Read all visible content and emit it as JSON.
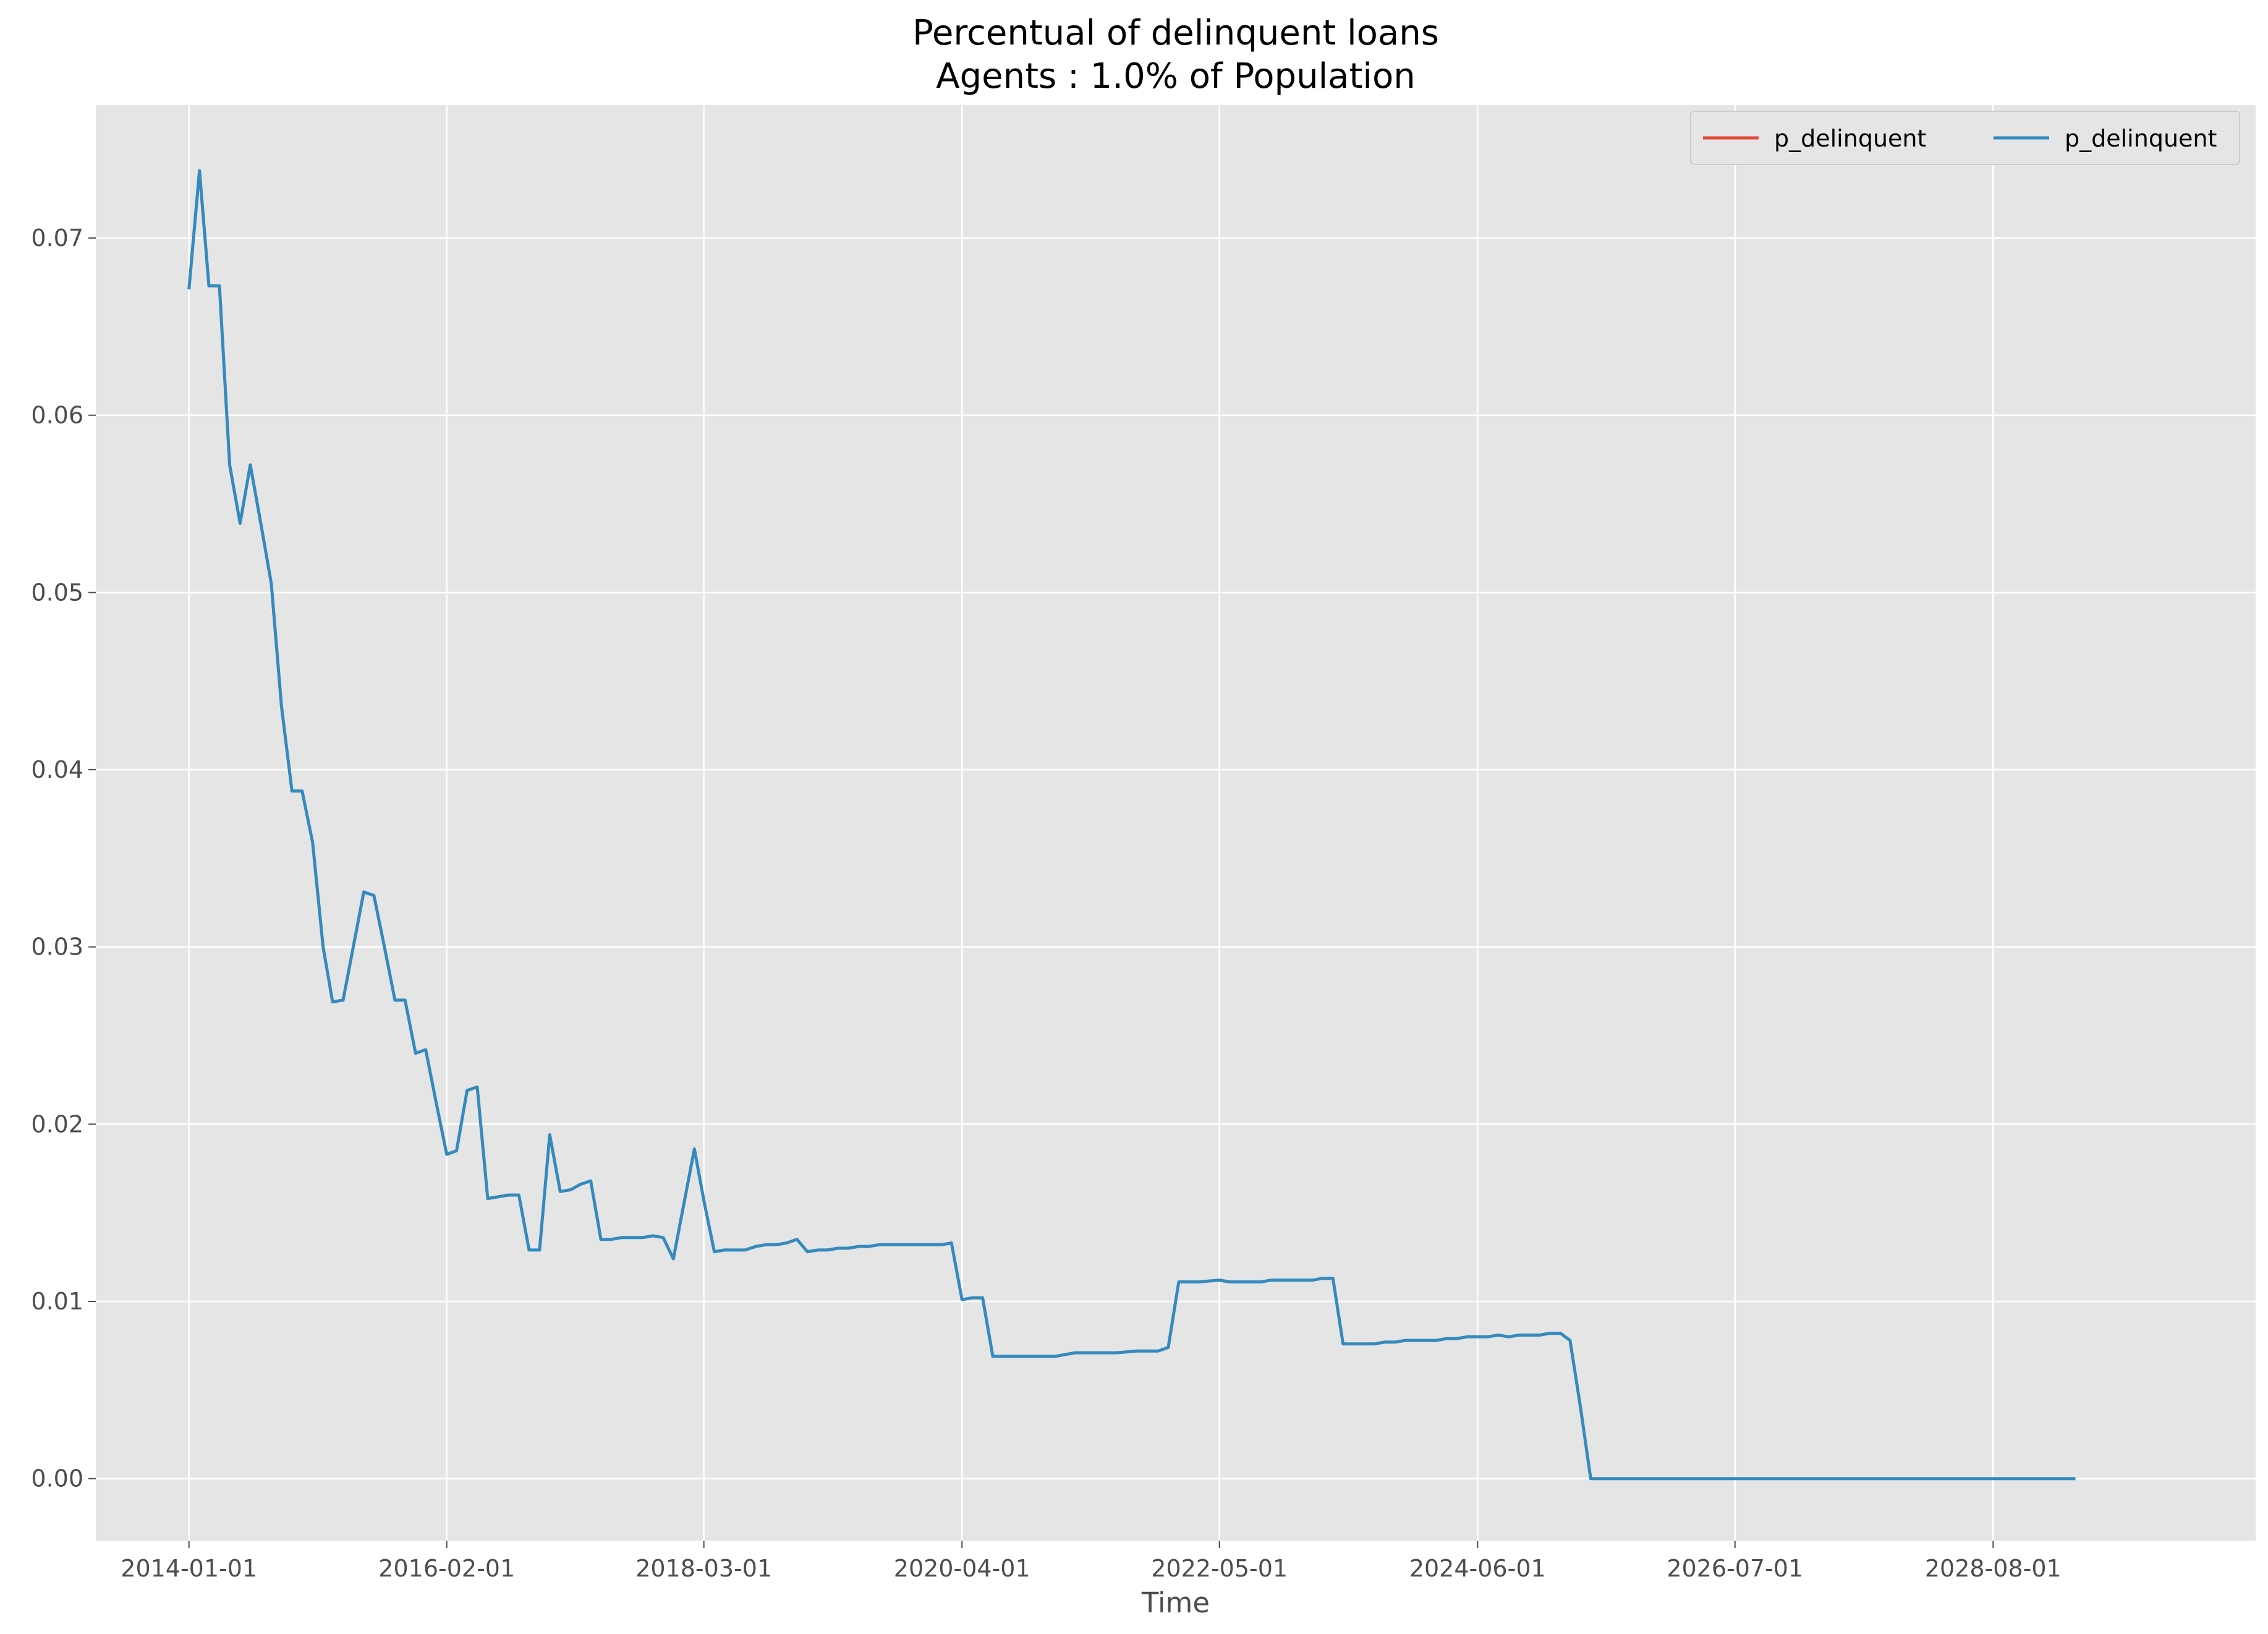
{
  "chart_data": {
    "type": "line",
    "title": "Percentual of delinquent loans",
    "subtitle": "Agents : 1.0% of Population",
    "xlabel": "Time",
    "ylabel": "",
    "x_ticks": [
      "2014-01-01",
      "2016-02-01",
      "2018-03-01",
      "2020-04-01",
      "2022-05-01",
      "2024-06-01",
      "2026-07-01",
      "2028-08-01"
    ],
    "y_ticks": [
      0.0,
      0.01,
      0.02,
      0.03,
      0.04,
      0.05,
      0.06,
      0.07
    ],
    "y_tick_labels": [
      "0.00",
      "0.01",
      "0.02",
      "0.03",
      "0.04",
      "0.05",
      "0.06",
      "0.07"
    ],
    "xlim": [
      "2013-04-01",
      "2030-09-15"
    ],
    "ylim": [
      -0.0035,
      0.0775
    ],
    "grid": true,
    "legend_position": "top-right",
    "colors": {
      "background": "#e5e5e5",
      "grid": "#ffffff",
      "series_red": "#e24a33",
      "series_blue": "#348abd"
    },
    "series": [
      {
        "name": "p_delinquent",
        "color": "#e24a33",
        "x": [],
        "y": []
      },
      {
        "name": "p_delinquent",
        "color": "#348abd",
        "x": [
          "2014-01-01",
          "2014-02-01",
          "2014-03-01",
          "2014-04-01",
          "2014-05-01",
          "2014-06-01",
          "2014-07-01",
          "2014-08-01",
          "2014-09-01",
          "2014-10-01",
          "2014-11-01",
          "2014-12-01",
          "2015-01-01",
          "2015-02-01",
          "2015-03-01",
          "2015-04-01",
          "2015-05-01",
          "2015-06-01",
          "2015-07-01",
          "2015-08-01",
          "2015-09-01",
          "2015-10-01",
          "2015-11-01",
          "2015-12-01",
          "2016-01-01",
          "2016-02-01",
          "2016-03-01",
          "2016-04-01",
          "2016-05-01",
          "2016-06-01",
          "2016-07-01",
          "2016-08-01",
          "2016-09-01",
          "2016-10-01",
          "2016-11-01",
          "2016-12-01",
          "2017-01-01",
          "2017-02-01",
          "2017-03-01",
          "2017-04-01",
          "2017-05-01",
          "2017-06-01",
          "2017-07-01",
          "2017-08-01",
          "2017-09-01",
          "2017-10-01",
          "2017-11-01",
          "2017-12-01",
          "2018-01-01",
          "2018-02-01",
          "2018-03-01",
          "2018-04-01",
          "2018-05-01",
          "2018-06-01",
          "2018-07-01",
          "2018-08-01",
          "2018-09-01",
          "2018-10-01",
          "2018-11-01",
          "2018-12-01",
          "2019-01-01",
          "2019-02-01",
          "2019-03-01",
          "2019-04-01",
          "2019-05-01",
          "2019-06-01",
          "2019-07-01",
          "2019-08-01",
          "2019-09-01",
          "2019-10-01",
          "2019-11-01",
          "2019-12-01",
          "2020-01-01",
          "2020-02-01",
          "2020-03-01",
          "2020-04-01",
          "2020-05-01",
          "2020-06-01",
          "2020-07-01",
          "2020-09-01",
          "2020-11-01",
          "2021-01-01",
          "2021-03-01",
          "2021-05-01",
          "2021-07-01",
          "2021-09-01",
          "2021-10-01",
          "2021-11-01",
          "2021-12-01",
          "2022-01-01",
          "2022-03-01",
          "2022-05-01",
          "2022-06-01",
          "2022-07-01",
          "2022-09-01",
          "2022-10-01",
          "2022-12-01",
          "2023-01-01",
          "2023-02-01",
          "2023-03-01",
          "2023-04-01",
          "2023-05-01",
          "2023-06-01",
          "2023-08-01",
          "2023-09-01",
          "2023-10-01",
          "2023-11-01",
          "2024-01-01",
          "2024-02-01",
          "2024-03-01",
          "2024-04-01",
          "2024-05-01",
          "2024-06-01",
          "2024-07-01",
          "2024-08-01",
          "2024-09-01",
          "2024-10-01",
          "2024-11-01",
          "2024-12-01",
          "2025-01-01",
          "2025-02-01",
          "2025-03-01",
          "2025-04-01",
          "2025-05-01",
          "2026-01-01",
          "2027-01-01",
          "2028-01-01",
          "2029-01-01",
          "2029-04-01"
        ],
        "y": [
          0.0671,
          0.0738,
          0.0673,
          0.0673,
          0.0572,
          0.0539,
          0.0572,
          0.0539,
          0.0505,
          0.0436,
          0.0388,
          0.0388,
          0.0359,
          0.03,
          0.0269,
          0.027,
          0.03,
          0.0331,
          0.0329,
          0.03,
          0.027,
          0.027,
          0.024,
          0.0242,
          0.0212,
          0.0183,
          0.0185,
          0.0219,
          0.0221,
          0.0158,
          0.0159,
          0.016,
          0.016,
          0.0129,
          0.0129,
          0.0194,
          0.0162,
          0.0163,
          0.0166,
          0.0168,
          0.0135,
          0.0135,
          0.0136,
          0.0136,
          0.0136,
          0.0137,
          0.0136,
          0.0124,
          0.0155,
          0.0186,
          0.0157,
          0.0128,
          0.0129,
          0.0129,
          0.0129,
          0.0131,
          0.0132,
          0.0132,
          0.0133,
          0.0135,
          0.0128,
          0.0129,
          0.0129,
          0.013,
          0.013,
          0.0131,
          0.0131,
          0.0132,
          0.0132,
          0.0132,
          0.0132,
          0.0132,
          0.0132,
          0.0132,
          0.0133,
          0.0101,
          0.0102,
          0.0102,
          0.0069,
          0.0069,
          0.0069,
          0.0069,
          0.0071,
          0.0071,
          0.0071,
          0.0072,
          0.0072,
          0.0072,
          0.0074,
          0.0111,
          0.0111,
          0.0112,
          0.0111,
          0.0111,
          0.0111,
          0.0112,
          0.0112,
          0.0112,
          0.0112,
          0.0113,
          0.0113,
          0.0076,
          0.0076,
          0.0076,
          0.0077,
          0.0077,
          0.0078,
          0.0078,
          0.0078,
          0.0079,
          0.0079,
          0.008,
          0.008,
          0.008,
          0.0081,
          0.008,
          0.0081,
          0.0081,
          0.0081,
          0.0082,
          0.0082,
          0.0078,
          0.004,
          0.0,
          0.0,
          0.0,
          0.0,
          0.0,
          0.0
        ]
      }
    ]
  }
}
